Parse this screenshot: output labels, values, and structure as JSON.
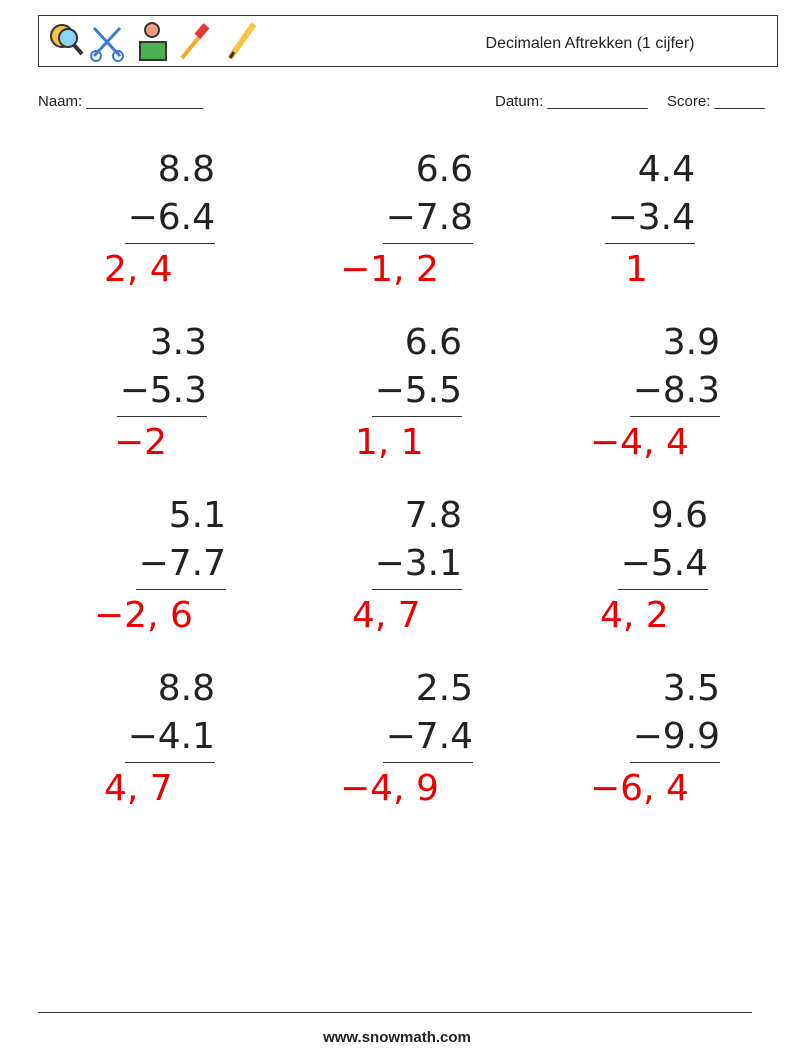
{
  "header": {
    "title": "Decimalen Aftrekken (1 cijfer)"
  },
  "fields": {
    "name": "Naam: ______________",
    "date": "Datum: ____________",
    "score": "Score: ______"
  },
  "problems": [
    {
      "top": "8.8",
      "bottom": "−6.4",
      "answer": "2, 4"
    },
    {
      "top": "6.6",
      "bottom": "−7.8",
      "answer": "−1, 2"
    },
    {
      "top": "4.4",
      "bottom": "−3.4",
      "answer": "1"
    },
    {
      "top": "3.3",
      "bottom": "−5.3",
      "answer": "−2"
    },
    {
      "top": "6.6",
      "bottom": "−5.5",
      "answer": "1, 1"
    },
    {
      "top": "3.9",
      "bottom": "−8.3",
      "answer": "−4, 4"
    },
    {
      "top": "5.1",
      "bottom": "−7.7",
      "answer": "−2, 6"
    },
    {
      "top": "7.8",
      "bottom": "−3.1",
      "answer": "4, 7"
    },
    {
      "top": "9.6",
      "bottom": "−5.4",
      "answer": "4, 2"
    },
    {
      "top": "8.8",
      "bottom": "−4.1",
      "answer": "4, 7"
    },
    {
      "top": "2.5",
      "bottom": "−7.4",
      "answer": "−4, 9"
    },
    {
      "top": "3.5",
      "bottom": "−9.9",
      "answer": "−6, 4"
    }
  ],
  "footer": {
    "site": "www.snowmath.com"
  }
}
